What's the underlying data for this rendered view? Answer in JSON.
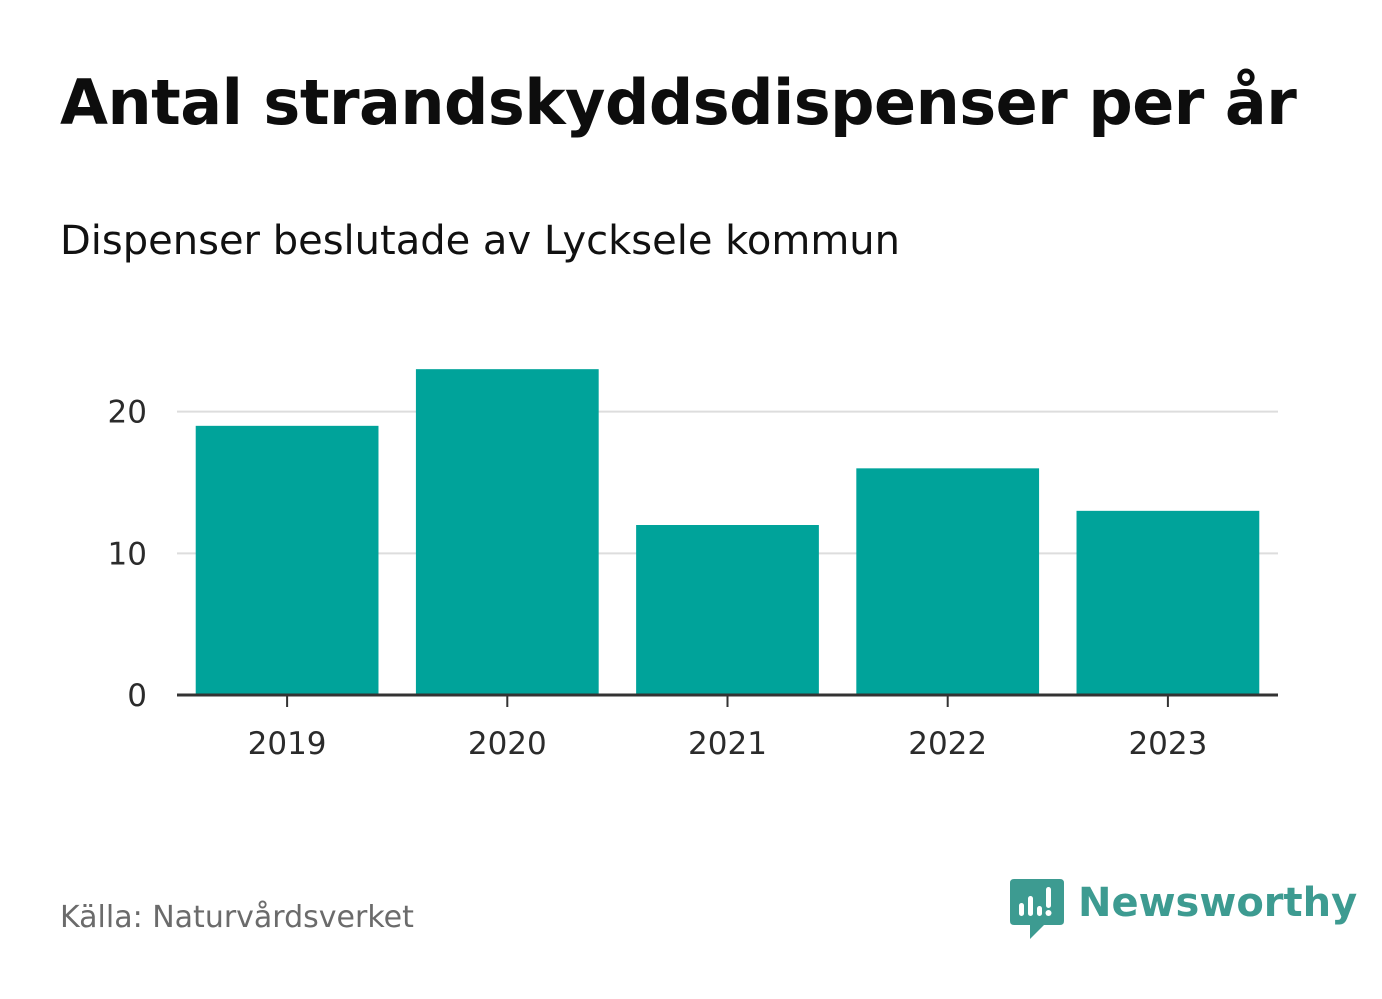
{
  "header": {
    "title": "Antal strandskyddsdispenser per år",
    "subtitle": "Dispenser beslutade av Lycksele kommun"
  },
  "footer": {
    "source": "Källa: Naturvårdsverket",
    "brand": "Newsworthy"
  },
  "colors": {
    "bar": "#00a39a",
    "grid": "#dddddd",
    "axis": "#333333",
    "brand": "#3d9b91"
  },
  "chart_data": {
    "type": "bar",
    "title": "Antal strandskyddsdispenser per år",
    "subtitle": "Dispenser beslutade av Lycksele kommun",
    "categories": [
      "2019",
      "2020",
      "2021",
      "2022",
      "2023"
    ],
    "values": [
      19,
      23,
      12,
      16,
      13
    ],
    "xlabel": "",
    "ylabel": "",
    "ylim": [
      0,
      24
    ],
    "yticks": [
      0,
      10,
      20
    ],
    "grid": true,
    "source": "Källa: Naturvårdsverket"
  }
}
